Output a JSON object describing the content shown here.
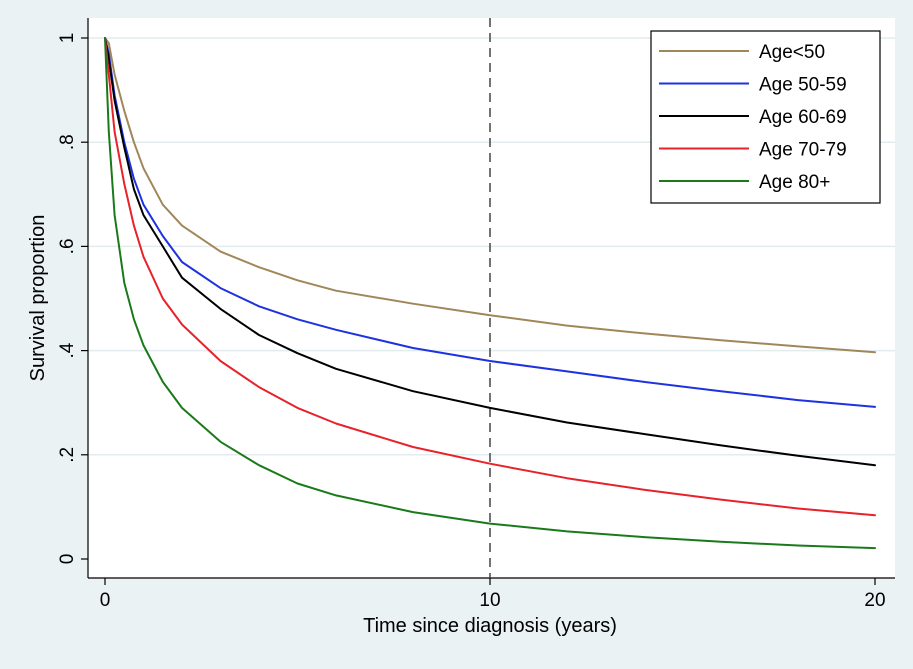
{
  "chart_data": {
    "type": "line",
    "title": "",
    "xlabel": "Time since diagnosis (years)",
    "ylabel": "Survival proportion",
    "xlim": [
      0,
      20
    ],
    "ylim": [
      0,
      1
    ],
    "xticks": [
      0,
      10,
      20
    ],
    "xtick_labels": [
      "0",
      "10",
      "20"
    ],
    "yticks": [
      0,
      0.2,
      0.4,
      0.6,
      0.8,
      1
    ],
    "ytick_labels": [
      "0",
      ".2",
      ".4",
      ".6",
      ".8",
      "1"
    ],
    "grid": "horizontal",
    "reference_line": {
      "x": 10,
      "style": "dashed"
    },
    "legend": {
      "position": "top-right"
    },
    "series": [
      {
        "name": "Age<50",
        "color": "#a0875a",
        "x": [
          0,
          0.1,
          0.25,
          0.5,
          0.75,
          1,
          1.5,
          2,
          3,
          4,
          5,
          6,
          8,
          10,
          12,
          14,
          16,
          18,
          20
        ],
        "values": [
          1.0,
          0.99,
          0.93,
          0.86,
          0.8,
          0.75,
          0.68,
          0.64,
          0.59,
          0.56,
          0.535,
          0.515,
          0.49,
          0.468,
          0.448,
          0.433,
          0.42,
          0.408,
          0.397
        ]
      },
      {
        "name": "Age 50-59",
        "color": "#1e32e0",
        "x": [
          0,
          0.1,
          0.25,
          0.5,
          0.75,
          1,
          1.5,
          2,
          3,
          4,
          5,
          6,
          8,
          10,
          12,
          14,
          16,
          18,
          20
        ],
        "values": [
          1.0,
          0.97,
          0.89,
          0.8,
          0.73,
          0.68,
          0.62,
          0.57,
          0.52,
          0.485,
          0.46,
          0.44,
          0.405,
          0.38,
          0.36,
          0.34,
          0.322,
          0.305,
          0.292
        ]
      },
      {
        "name": "Age 60-69",
        "color": "#000000",
        "x": [
          0,
          0.1,
          0.25,
          0.5,
          0.75,
          1,
          1.5,
          2,
          3,
          4,
          5,
          6,
          8,
          10,
          12,
          14,
          16,
          18,
          20
        ],
        "values": [
          1.0,
          0.96,
          0.88,
          0.79,
          0.71,
          0.66,
          0.6,
          0.54,
          0.48,
          0.43,
          0.395,
          0.365,
          0.322,
          0.29,
          0.262,
          0.24,
          0.218,
          0.198,
          0.18
        ]
      },
      {
        "name": "Age 70-79",
        "color": "#e8222a",
        "x": [
          0,
          0.1,
          0.25,
          0.5,
          0.75,
          1,
          1.5,
          2,
          3,
          4,
          5,
          6,
          8,
          10,
          12,
          14,
          16,
          18,
          20
        ],
        "values": [
          1.0,
          0.93,
          0.82,
          0.72,
          0.64,
          0.58,
          0.5,
          0.45,
          0.38,
          0.33,
          0.29,
          0.26,
          0.215,
          0.183,
          0.155,
          0.133,
          0.114,
          0.097,
          0.084
        ]
      },
      {
        "name": "Age 80+",
        "color": "#1a7a1a",
        "x": [
          0,
          0.1,
          0.25,
          0.5,
          0.75,
          1,
          1.5,
          2,
          3,
          4,
          5,
          6,
          8,
          10,
          12,
          14,
          16,
          18,
          20
        ],
        "values": [
          1.0,
          0.82,
          0.66,
          0.53,
          0.46,
          0.41,
          0.34,
          0.29,
          0.225,
          0.18,
          0.145,
          0.122,
          0.09,
          0.068,
          0.053,
          0.042,
          0.033,
          0.026,
          0.021
        ]
      }
    ]
  }
}
